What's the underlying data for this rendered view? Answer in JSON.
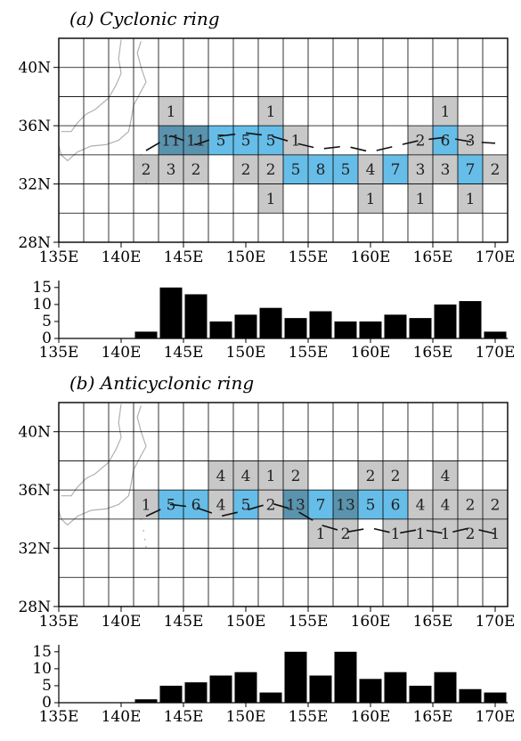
{
  "colors": {
    "gray": "#c8c8c8",
    "blue": "#66bde8",
    "dark": "#5a93ad",
    "grid": "#000000",
    "bar": "#000000",
    "coast": "#b0b0b0"
  },
  "chart_data": [
    {
      "type": "heatmap",
      "title": "(a) Cyclonic ring",
      "x_ticks": [
        "135E",
        "140E",
        "145E",
        "150E",
        "155E",
        "160E",
        "165E",
        "170E"
      ],
      "y_ticks": [
        "28N",
        "32N",
        "36N",
        "40N"
      ],
      "xlim": [
        135,
        171
      ],
      "ylim": [
        28,
        42
      ],
      "cells": [
        {
          "lon": 144,
          "lat": 37,
          "count": "1",
          "shade": "gray"
        },
        {
          "lon": 152,
          "lat": 37,
          "count": "1",
          "shade": "gray"
        },
        {
          "lon": 166,
          "lat": 37,
          "count": "1",
          "shade": "gray"
        },
        {
          "lon": 144,
          "lat": 35,
          "count": "11",
          "shade": "dark"
        },
        {
          "lon": 146,
          "lat": 35,
          "count": "11",
          "shade": "dark"
        },
        {
          "lon": 148,
          "lat": 35,
          "count": "5",
          "shade": "blue"
        },
        {
          "lon": 150,
          "lat": 35,
          "count": "5",
          "shade": "blue"
        },
        {
          "lon": 152,
          "lat": 35,
          "count": "5",
          "shade": "blue"
        },
        {
          "lon": 154,
          "lat": 35,
          "count": "1",
          "shade": "gray"
        },
        {
          "lon": 164,
          "lat": 35,
          "count": "2",
          "shade": "gray"
        },
        {
          "lon": 166,
          "lat": 35,
          "count": "6",
          "shade": "blue"
        },
        {
          "lon": 168,
          "lat": 35,
          "count": "3",
          "shade": "gray"
        },
        {
          "lon": 142,
          "lat": 33,
          "count": "2",
          "shade": "gray"
        },
        {
          "lon": 144,
          "lat": 33,
          "count": "3",
          "shade": "gray"
        },
        {
          "lon": 146,
          "lat": 33,
          "count": "2",
          "shade": "gray"
        },
        {
          "lon": 150,
          "lat": 33,
          "count": "2",
          "shade": "gray"
        },
        {
          "lon": 152,
          "lat": 33,
          "count": "2",
          "shade": "gray"
        },
        {
          "lon": 154,
          "lat": 33,
          "count": "5",
          "shade": "blue"
        },
        {
          "lon": 156,
          "lat": 33,
          "count": "8",
          "shade": "blue"
        },
        {
          "lon": 158,
          "lat": 33,
          "count": "5",
          "shade": "blue"
        },
        {
          "lon": 160,
          "lat": 33,
          "count": "4",
          "shade": "gray"
        },
        {
          "lon": 162,
          "lat": 33,
          "count": "7",
          "shade": "blue"
        },
        {
          "lon": 164,
          "lat": 33,
          "count": "3",
          "shade": "gray"
        },
        {
          "lon": 166,
          "lat": 33,
          "count": "3",
          "shade": "gray"
        },
        {
          "lon": 168,
          "lat": 33,
          "count": "7",
          "shade": "blue"
        },
        {
          "lon": 170,
          "lat": 33,
          "count": "2",
          "shade": "gray"
        },
        {
          "lon": 152,
          "lat": 31,
          "count": "1",
          "shade": "gray"
        },
        {
          "lon": 160,
          "lat": 31,
          "count": "1",
          "shade": "gray"
        },
        {
          "lon": 164,
          "lat": 31,
          "count": "1",
          "shade": "gray"
        },
        {
          "lon": 168,
          "lat": 31,
          "count": "1",
          "shade": "gray"
        }
      ],
      "track": [
        [
          142,
          34.3
        ],
        [
          144,
          35.3
        ],
        [
          146,
          34.7
        ],
        [
          148,
          35.3
        ],
        [
          150,
          35.5
        ],
        [
          152,
          35.3
        ],
        [
          154,
          34.8
        ],
        [
          156,
          34.4
        ],
        [
          158,
          34.6
        ],
        [
          160,
          34.2
        ],
        [
          162,
          34.6
        ],
        [
          164,
          35.0
        ],
        [
          166,
          35.2
        ],
        [
          168,
          34.9
        ],
        [
          170,
          34.8
        ]
      ],
      "histogram": {
        "type": "bar",
        "x_ticks": [
          "135E",
          "140E",
          "145E",
          "150E",
          "155E",
          "160E",
          "165E",
          "170E"
        ],
        "y_ticks": [
          "0",
          "5",
          "10",
          "15"
        ],
        "ylim": [
          0,
          16
        ],
        "lons": [
          142,
          144,
          146,
          148,
          150,
          152,
          154,
          156,
          158,
          160,
          162,
          164,
          166,
          168,
          170
        ],
        "values": [
          2,
          15,
          13,
          5,
          7,
          9,
          6,
          8,
          5,
          5,
          7,
          6,
          10,
          11,
          2
        ]
      }
    },
    {
      "type": "heatmap",
      "title": "(b) Anticyclonic ring",
      "x_ticks": [
        "135E",
        "140E",
        "145E",
        "150E",
        "155E",
        "160E",
        "165E",
        "170E"
      ],
      "y_ticks": [
        "28N",
        "32N",
        "36N",
        "40N"
      ],
      "xlim": [
        135,
        171
      ],
      "ylim": [
        28,
        42
      ],
      "cells": [
        {
          "lon": 148,
          "lat": 37,
          "count": "4",
          "shade": "gray"
        },
        {
          "lon": 150,
          "lat": 37,
          "count": "4",
          "shade": "gray"
        },
        {
          "lon": 152,
          "lat": 37,
          "count": "1",
          "shade": "gray"
        },
        {
          "lon": 154,
          "lat": 37,
          "count": "2",
          "shade": "gray"
        },
        {
          "lon": 160,
          "lat": 37,
          "count": "2",
          "shade": "gray"
        },
        {
          "lon": 162,
          "lat": 37,
          "count": "2",
          "shade": "gray"
        },
        {
          "lon": 166,
          "lat": 37,
          "count": "4",
          "shade": "gray"
        },
        {
          "lon": 142,
          "lat": 35,
          "count": "1",
          "shade": "gray"
        },
        {
          "lon": 144,
          "lat": 35,
          "count": "5",
          "shade": "blue"
        },
        {
          "lon": 146,
          "lat": 35,
          "count": "6",
          "shade": "blue"
        },
        {
          "lon": 148,
          "lat": 35,
          "count": "4",
          "shade": "gray"
        },
        {
          "lon": 150,
          "lat": 35,
          "count": "5",
          "shade": "blue"
        },
        {
          "lon": 152,
          "lat": 35,
          "count": "2",
          "shade": "gray"
        },
        {
          "lon": 154,
          "lat": 35,
          "count": "13",
          "shade": "dark"
        },
        {
          "lon": 156,
          "lat": 35,
          "count": "7",
          "shade": "blue"
        },
        {
          "lon": 158,
          "lat": 35,
          "count": "13",
          "shade": "dark"
        },
        {
          "lon": 160,
          "lat": 35,
          "count": "5",
          "shade": "blue"
        },
        {
          "lon": 162,
          "lat": 35,
          "count": "6",
          "shade": "blue"
        },
        {
          "lon": 164,
          "lat": 35,
          "count": "4",
          "shade": "gray"
        },
        {
          "lon": 166,
          "lat": 35,
          "count": "4",
          "shade": "gray"
        },
        {
          "lon": 168,
          "lat": 35,
          "count": "2",
          "shade": "gray"
        },
        {
          "lon": 170,
          "lat": 35,
          "count": "2",
          "shade": "gray"
        },
        {
          "lon": 156,
          "lat": 33,
          "count": "1",
          "shade": "gray"
        },
        {
          "lon": 158,
          "lat": 33,
          "count": "2",
          "shade": "gray"
        },
        {
          "lon": 162,
          "lat": 33,
          "count": "1",
          "shade": "gray"
        },
        {
          "lon": 164,
          "lat": 33,
          "count": "1",
          "shade": "gray"
        },
        {
          "lon": 166,
          "lat": 33,
          "count": "1",
          "shade": "gray"
        },
        {
          "lon": 168,
          "lat": 33,
          "count": "2",
          "shade": "gray"
        },
        {
          "lon": 170,
          "lat": 33,
          "count": "1",
          "shade": "gray"
        }
      ],
      "track": [
        [
          142,
          34.2
        ],
        [
          144,
          35.0
        ],
        [
          146,
          34.8
        ],
        [
          148,
          34.2
        ],
        [
          150,
          34.6
        ],
        [
          152,
          35.1
        ],
        [
          154,
          34.6
        ],
        [
          156,
          33.6
        ],
        [
          158,
          33.1
        ],
        [
          160,
          33.4
        ],
        [
          162,
          33.0
        ],
        [
          164,
          33.3
        ],
        [
          166,
          33.0
        ],
        [
          168,
          33.4
        ],
        [
          170,
          33.0
        ]
      ],
      "histogram": {
        "type": "bar",
        "x_ticks": [
          "135E",
          "140E",
          "145E",
          "150E",
          "155E",
          "160E",
          "165E",
          "170E"
        ],
        "y_ticks": [
          "0",
          "5",
          "10",
          "15"
        ],
        "ylim": [
          0,
          16
        ],
        "lons": [
          142,
          144,
          146,
          148,
          150,
          152,
          154,
          156,
          158,
          160,
          162,
          164,
          166,
          168,
          170
        ],
        "values": [
          1,
          5,
          6,
          8,
          9,
          3,
          15,
          8,
          15,
          7,
          9,
          5,
          9,
          4,
          3
        ]
      }
    }
  ]
}
